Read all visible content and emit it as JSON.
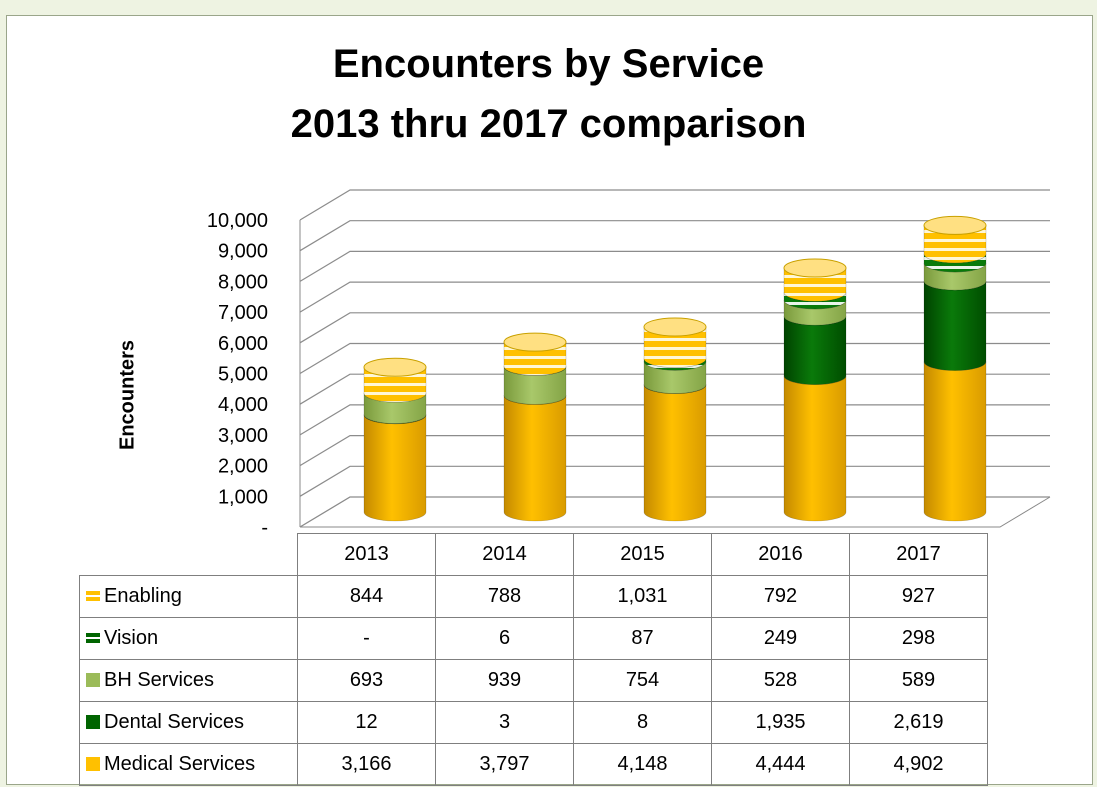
{
  "chart_data": {
    "type": "bar",
    "stacked": true,
    "style": "3d-cylinder",
    "title": "Encounters by Service",
    "subtitle": "2013 thru 2017 comparison",
    "ylabel": "Encounters",
    "xlabel": "",
    "ylim": [
      0,
      10000
    ],
    "yticks": [
      "-",
      "1,000",
      "2,000",
      "3,000",
      "4,000",
      "5,000",
      "6,000",
      "7,000",
      "8,000",
      "9,000",
      "10,000"
    ],
    "categories": [
      "2013",
      "2014",
      "2015",
      "2016",
      "2017"
    ],
    "grid": true,
    "legend": "data-table",
    "series": [
      {
        "name": "Medical Services",
        "values": [
          3166,
          3797,
          4148,
          4444,
          4902
        ],
        "labels": [
          "3,166",
          "3,797",
          "4,148",
          "4,444",
          "4,902"
        ],
        "color": "#ffc000",
        "marker": "square"
      },
      {
        "name": "Dental Services",
        "values": [
          12,
          3,
          8,
          1935,
          2619
        ],
        "labels": [
          "12",
          "3",
          "8",
          "1,935",
          "2,619"
        ],
        "color": "#006400",
        "marker": "square"
      },
      {
        "name": "BH Services",
        "values": [
          693,
          939,
          754,
          528,
          589
        ],
        "labels": [
          "693",
          "939",
          "754",
          "528",
          "589"
        ],
        "color": "#9bbb59",
        "marker": "square"
      },
      {
        "name": "Vision",
        "values": [
          0,
          6,
          87,
          249,
          298
        ],
        "labels": [
          "-",
          "6",
          "87",
          "249",
          "298"
        ],
        "color": "#006400",
        "marker": "striped"
      },
      {
        "name": "Enabling",
        "values": [
          844,
          788,
          1031,
          792,
          927
        ],
        "labels": [
          "844",
          "788",
          "1,031",
          "792",
          "927"
        ],
        "color": "#ffc000",
        "marker": "striped"
      }
    ]
  }
}
